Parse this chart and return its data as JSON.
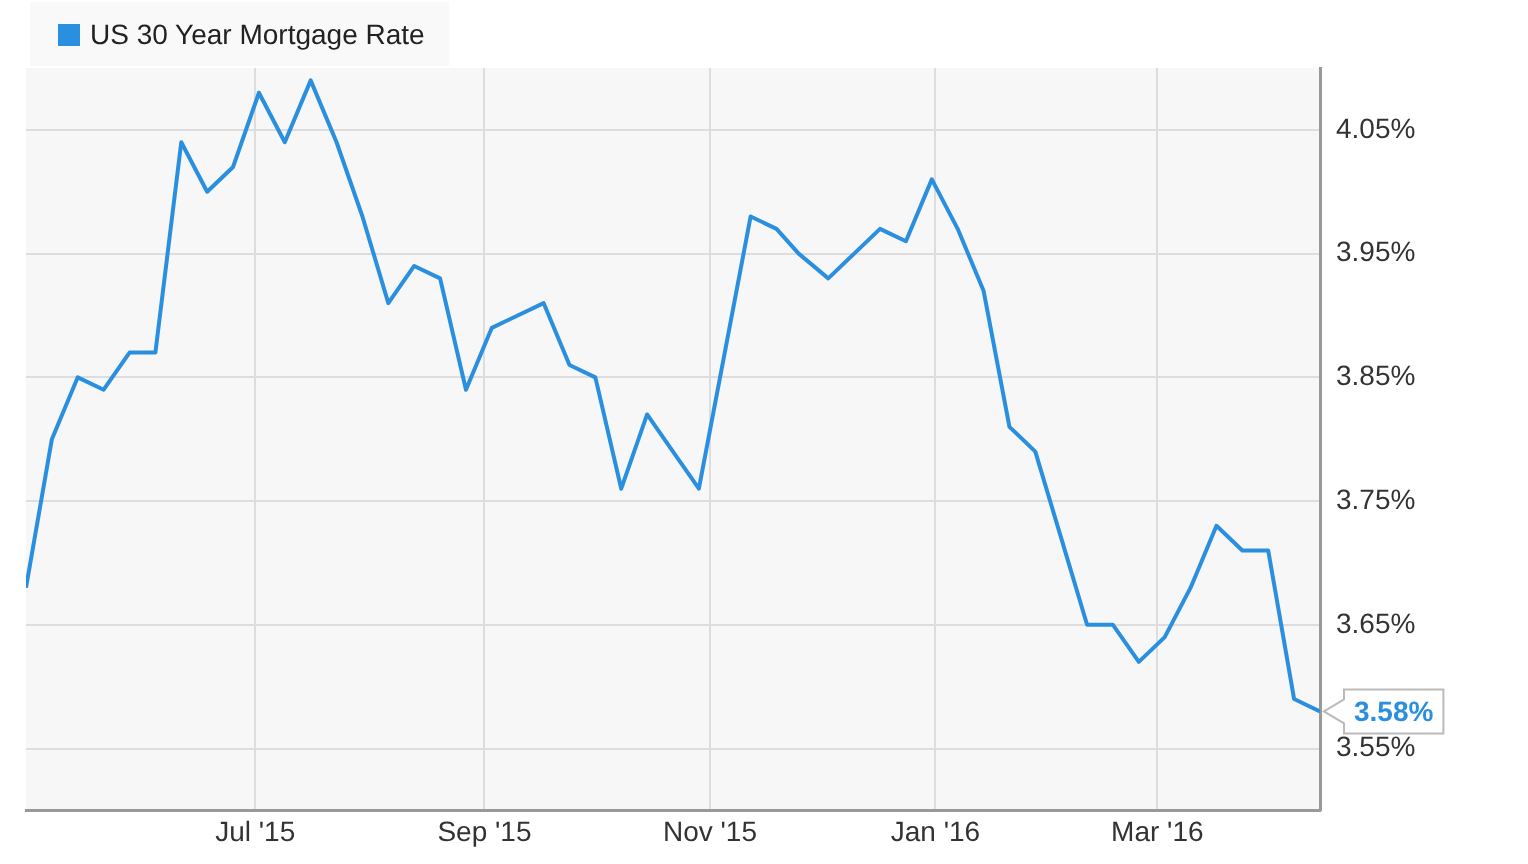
{
  "chart_data": {
    "type": "line",
    "x": [
      "2015-04-30",
      "2015-05-07",
      "2015-05-14",
      "2015-05-21",
      "2015-05-28",
      "2015-06-04",
      "2015-06-11",
      "2015-06-18",
      "2015-06-25",
      "2015-07-02",
      "2015-07-09",
      "2015-07-16",
      "2015-07-23",
      "2015-07-30",
      "2015-08-06",
      "2015-08-13",
      "2015-08-20",
      "2015-08-27",
      "2015-09-03",
      "2015-09-10",
      "2015-09-17",
      "2015-09-24",
      "2015-10-01",
      "2015-10-08",
      "2015-10-15",
      "2015-10-22",
      "2015-10-29",
      "2015-11-05",
      "2015-11-12",
      "2015-11-19",
      "2015-11-25",
      "2015-12-03",
      "2015-12-10",
      "2015-12-17",
      "2015-12-24",
      "2015-12-31",
      "2016-01-07",
      "2016-01-14",
      "2016-01-21",
      "2016-01-28",
      "2016-02-04",
      "2016-02-11",
      "2016-02-18",
      "2016-02-25",
      "2016-03-03",
      "2016-03-10",
      "2016-03-17",
      "2016-03-24",
      "2016-03-31",
      "2016-04-07",
      "2016-04-14"
    ],
    "series": [
      {
        "name": "US 30 Year Mortgage Rate",
        "color": "#2b8fe0",
        "values": [
          3.68,
          3.8,
          3.85,
          3.84,
          3.87,
          3.87,
          4.04,
          4.0,
          4.02,
          4.08,
          4.04,
          4.09,
          4.04,
          3.98,
          3.91,
          3.94,
          3.93,
          3.84,
          3.89,
          3.9,
          3.91,
          3.86,
          3.85,
          3.76,
          3.82,
          3.79,
          3.76,
          3.87,
          3.98,
          3.97,
          3.95,
          3.93,
          3.95,
          3.97,
          3.96,
          4.01,
          3.97,
          3.92,
          3.81,
          3.79,
          3.72,
          3.65,
          3.65,
          3.62,
          3.64,
          3.68,
          3.73,
          3.71,
          3.71,
          3.59,
          3.58
        ]
      }
    ],
    "xlim": [
      "2015-04-30",
      "2016-04-14"
    ],
    "xticks": [
      {
        "value": "2015-07-01",
        "label": "Jul '15"
      },
      {
        "value": "2015-09-01",
        "label": "Sep '15"
      },
      {
        "value": "2015-11-01",
        "label": "Nov '15"
      },
      {
        "value": "2016-01-01",
        "label": "Jan '16"
      },
      {
        "value": "2016-03-01",
        "label": "Mar '16"
      }
    ],
    "ylim": [
      3.5,
      4.1
    ],
    "yticks": [
      {
        "value": 3.55,
        "label": "3.55%"
      },
      {
        "value": 3.65,
        "label": "3.65%"
      },
      {
        "value": 3.75,
        "label": "3.75%"
      },
      {
        "value": 3.85,
        "label": "3.85%"
      },
      {
        "value": 3.95,
        "label": "3.95%"
      },
      {
        "value": 4.05,
        "label": "4.05%"
      }
    ],
    "annotations": [
      {
        "text": "3.58%",
        "x": "2016-04-14",
        "y": 3.58
      }
    ],
    "grid": true,
    "legend": "top left",
    "marker": "none",
    "line_style": "solid"
  }
}
